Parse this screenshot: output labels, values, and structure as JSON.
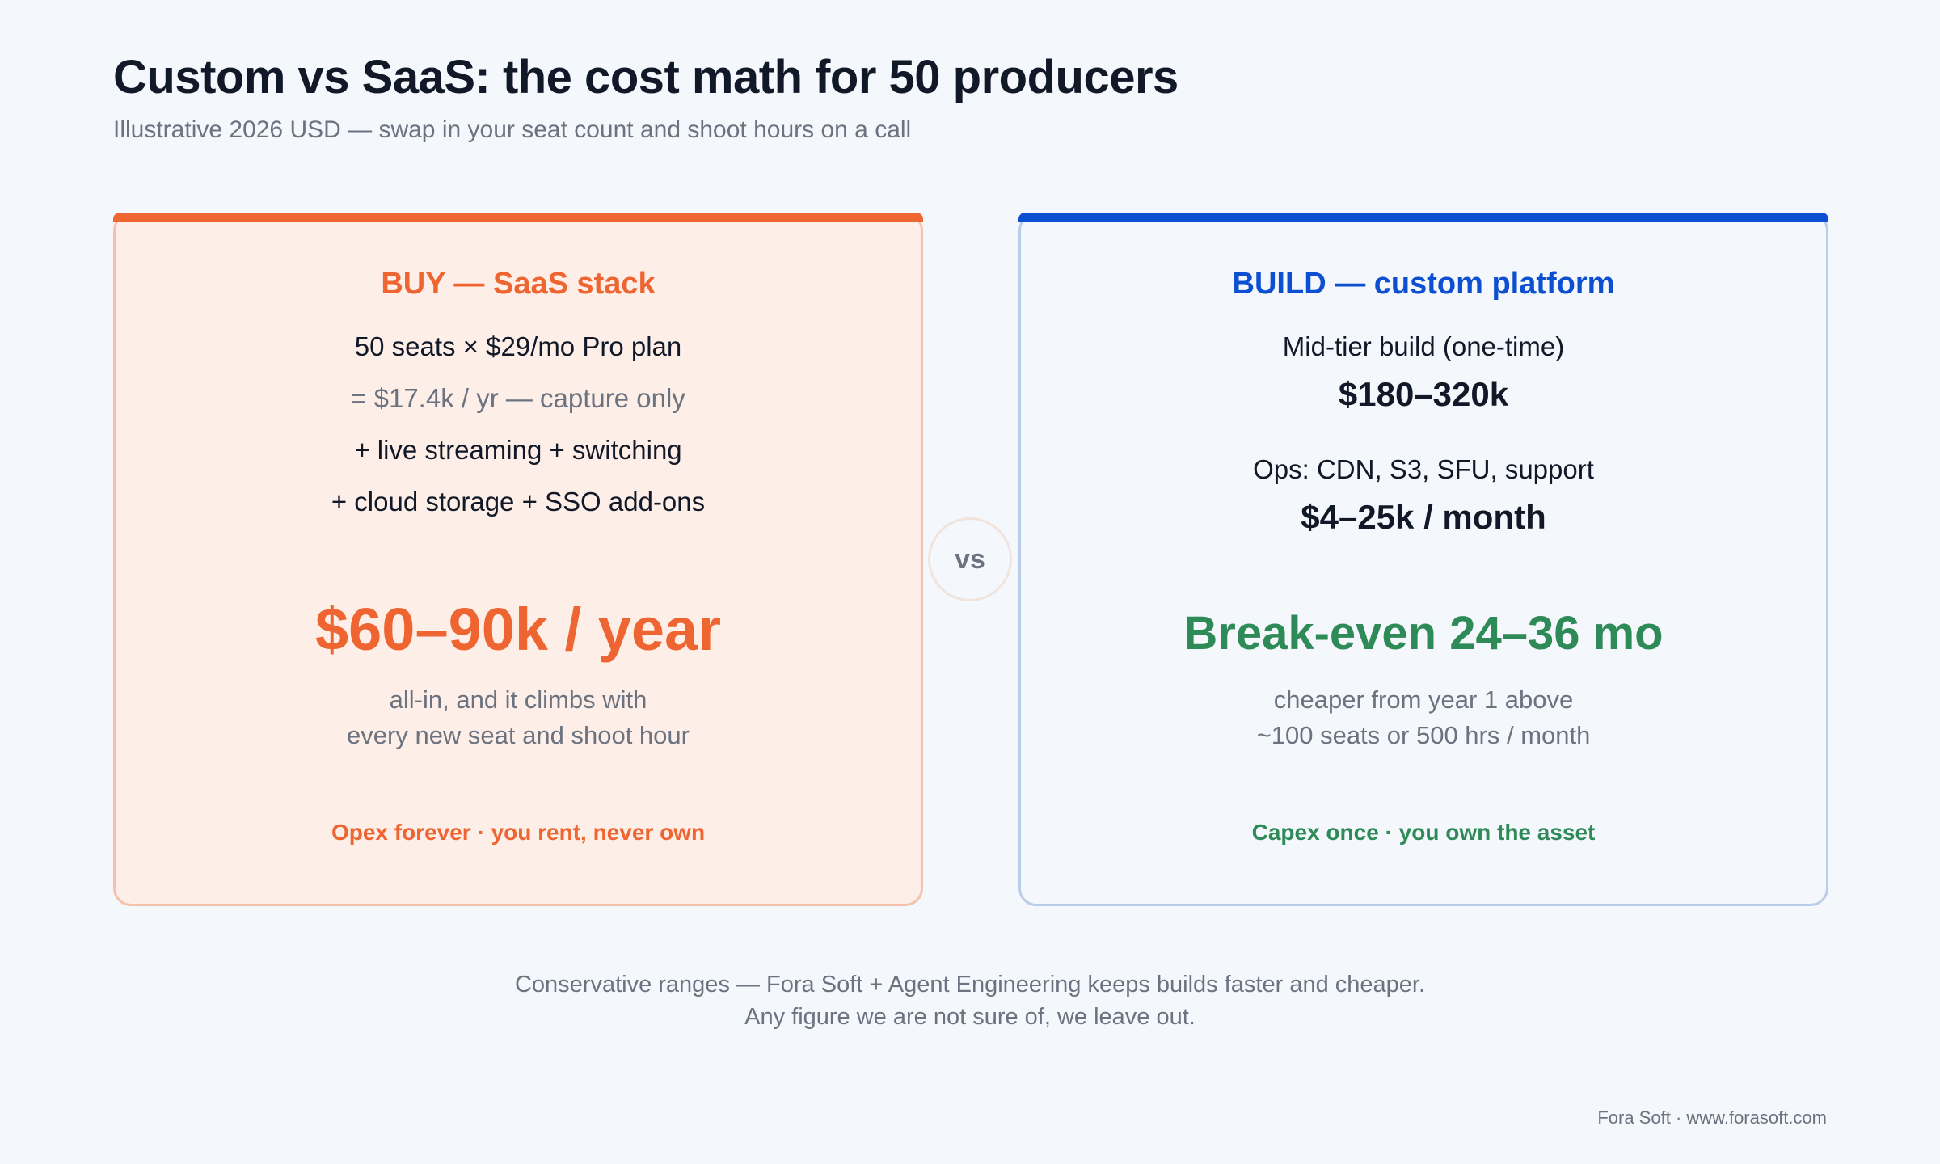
{
  "header": {
    "title": "Custom vs SaaS: the cost math for 50 producers",
    "subtitle": "Illustrative 2026 USD — swap in your seat count and shoot hours on a call"
  },
  "buy": {
    "heading": "BUY — SaaS stack",
    "line1": "50 seats × $29/mo Pro plan",
    "line2": "= $17.4k / yr — capture only",
    "line3": "+ live streaming + switching",
    "line4": "+ cloud storage + SSO add-ons",
    "big": "$60–90k / year",
    "note_line1": "all-in, and it climbs with",
    "note_line2": "every new seat and shoot hour",
    "footer": "Opex forever · you rent, never own",
    "accent": "#ef6531"
  },
  "vs_label": "vs",
  "build": {
    "heading": "BUILD — custom platform",
    "line1": "Mid-tier build (one-time)",
    "line1_value": "$180–320k",
    "line2": "Ops: CDN, S3, SFU, support",
    "line2_value": "$4–25k / month",
    "big": "Break-even 24–36 mo",
    "note_line1": "cheaper from year 1 above",
    "note_line2": "~100 seats or 500 hrs / month",
    "footer": "Capex once · you own the asset",
    "accent": "#0c4fd1",
    "highlight": "#2e8b57"
  },
  "disclaimer": {
    "line1": "Conservative ranges — Fora Soft + Agent Engineering keeps builds faster and cheaper.",
    "line2": "Any figure we are not sure of, we leave out."
  },
  "credit": "Fora Soft · www.forasoft.com"
}
